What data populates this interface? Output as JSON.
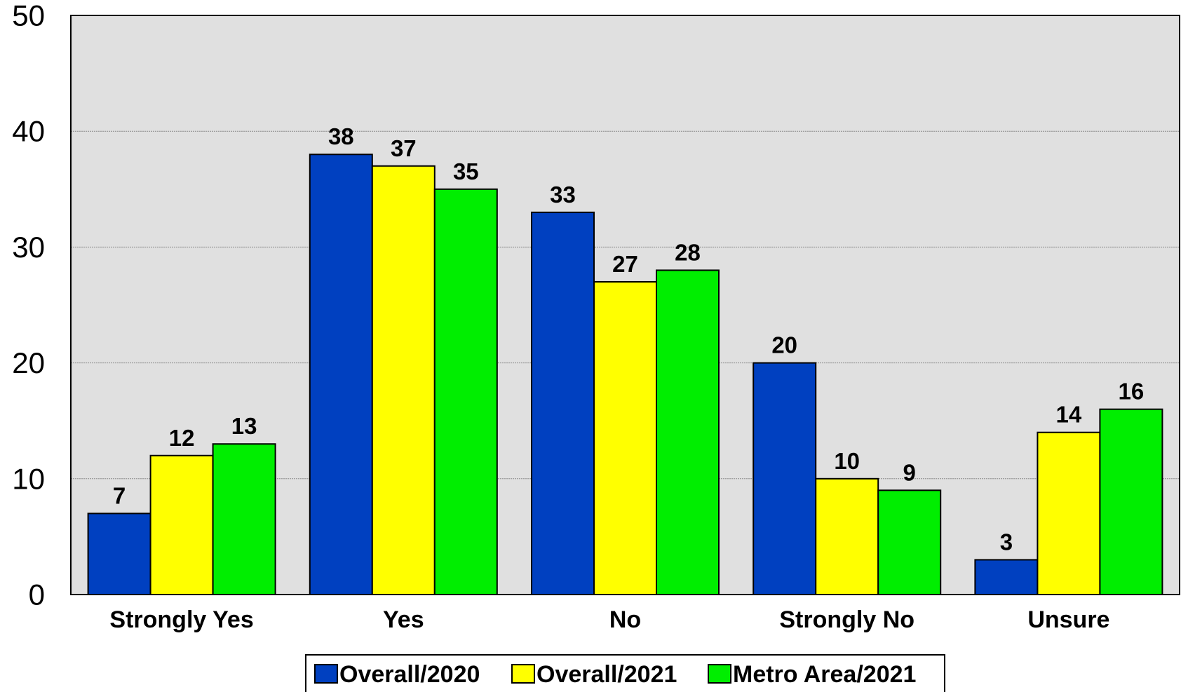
{
  "chart_data": {
    "type": "bar",
    "categories": [
      "Strongly Yes",
      "Yes",
      "No",
      "Strongly No",
      "Unsure"
    ],
    "series": [
      {
        "name": "Overall/2020",
        "color": "#0040c0",
        "values": [
          7,
          38,
          33,
          20,
          3
        ]
      },
      {
        "name": "Overall/2021",
        "color": "#ffff00",
        "values": [
          12,
          37,
          27,
          10,
          14
        ]
      },
      {
        "name": "Metro Area/2021",
        "color": "#00ee00",
        "values": [
          13,
          35,
          28,
          9,
          16
        ]
      }
    ],
    "title": "",
    "xlabel": "",
    "ylabel": "",
    "ylim": [
      0,
      50
    ],
    "yticks": [
      0,
      10,
      20,
      30,
      40,
      50
    ],
    "grid": true,
    "plot_background": "#e0e0e0",
    "legend_position": "bottom-center"
  }
}
